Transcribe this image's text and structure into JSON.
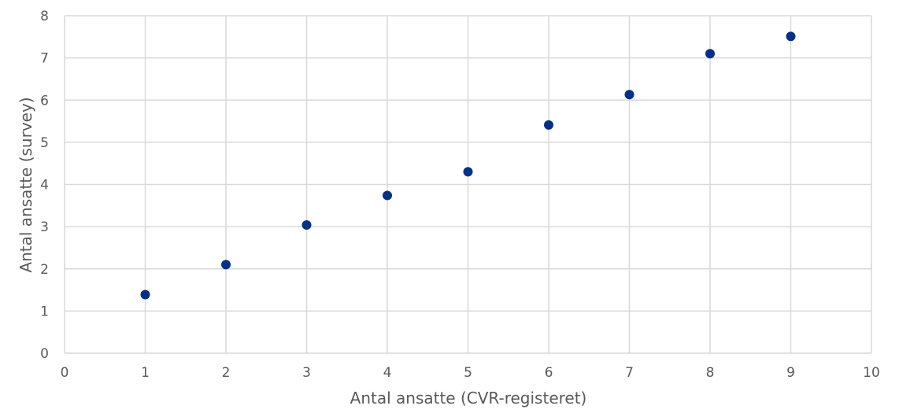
{
  "chart_data": {
    "type": "scatter",
    "xlabel": "Antal ansatte (CVR-registeret)",
    "ylabel": "Antal ansatte (survey)",
    "xlim": [
      0,
      10
    ],
    "ylim": [
      0,
      8
    ],
    "x_ticks": [
      0,
      1,
      2,
      3,
      4,
      5,
      6,
      7,
      8,
      9,
      10
    ],
    "y_ticks": [
      0,
      1,
      2,
      3,
      4,
      5,
      6,
      7,
      8
    ],
    "grid": true,
    "legend": "none",
    "series": [
      {
        "color": "#003087",
        "points": [
          {
            "x": 1,
            "y": 1.39
          },
          {
            "x": 2,
            "y": 2.1
          },
          {
            "x": 3,
            "y": 3.04
          },
          {
            "x": 4,
            "y": 3.74
          },
          {
            "x": 5,
            "y": 4.3
          },
          {
            "x": 6,
            "y": 5.41
          },
          {
            "x": 7,
            "y": 6.13
          },
          {
            "x": 8,
            "y": 7.1
          },
          {
            "x": 9,
            "y": 7.51
          }
        ]
      }
    ]
  }
}
